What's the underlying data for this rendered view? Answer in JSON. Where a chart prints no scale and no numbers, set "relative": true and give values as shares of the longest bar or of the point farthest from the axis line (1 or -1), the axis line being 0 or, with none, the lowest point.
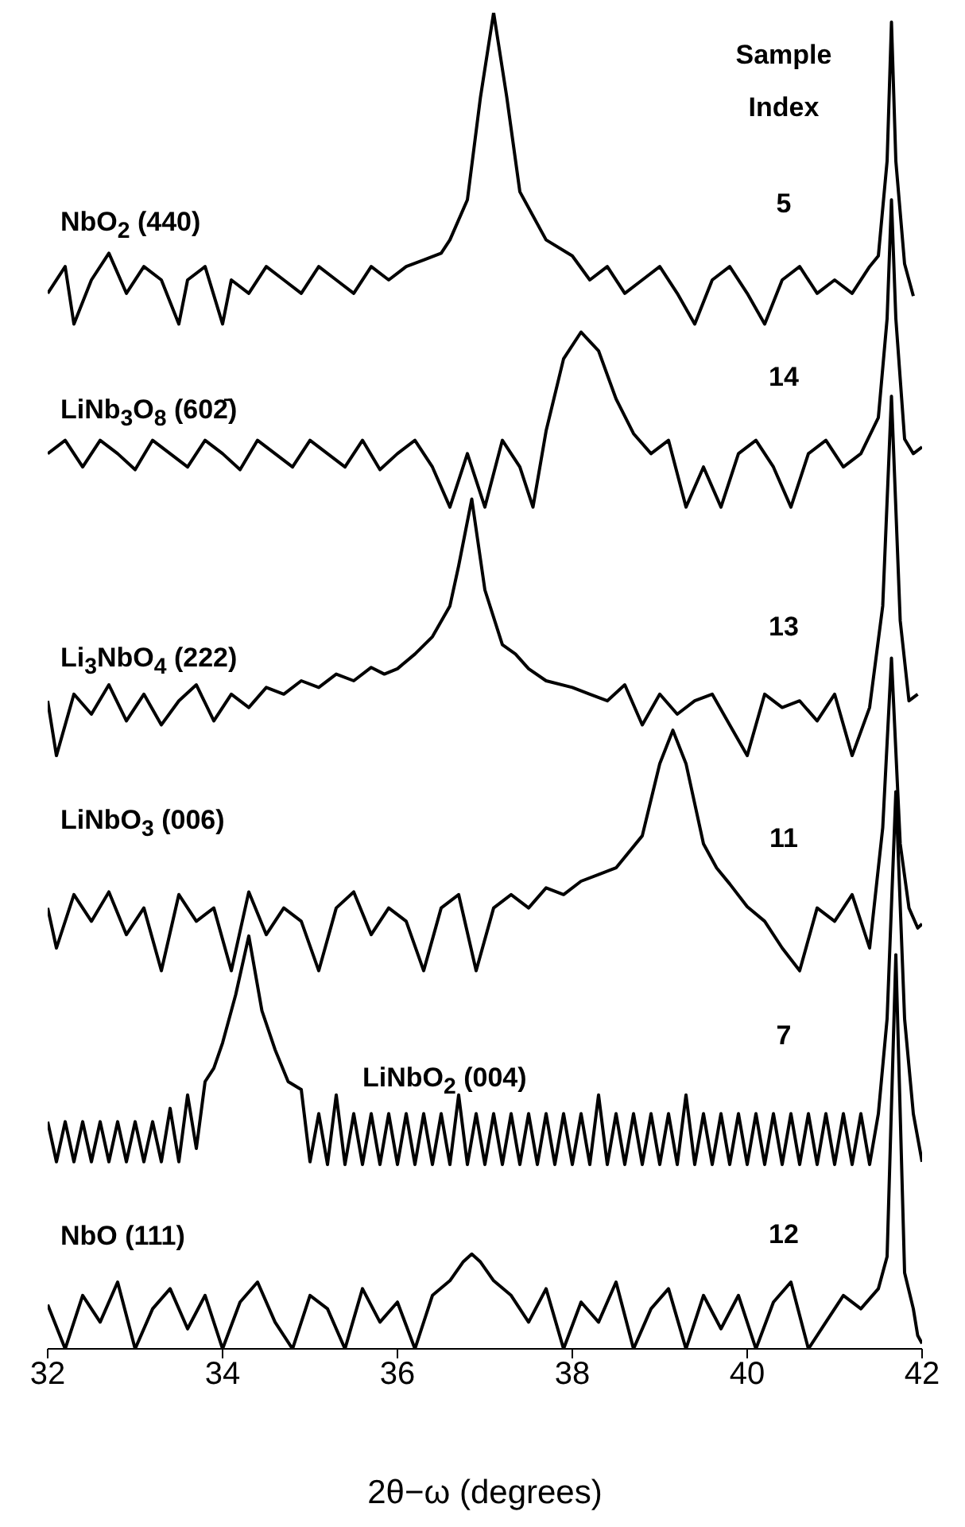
{
  "chart_data": {
    "type": "line",
    "relative": true,
    "xlabel": "2θ−ω (degrees)",
    "xlim": [
      32,
      42
    ],
    "xticks": [
      32,
      34,
      36,
      38,
      40,
      42
    ],
    "marker": "none",
    "line_style": "solid",
    "annotations": [
      "Sample Index",
      "5",
      "14",
      "13",
      "11",
      "7",
      "12"
    ],
    "series": [
      {
        "name": "NbO$_{2}$ (440)",
        "color": "#000000",
        "x": [
          32.0,
          32.2,
          32.3,
          32.5,
          32.7,
          32.9,
          33.1,
          33.3,
          33.5,
          33.6,
          33.8,
          34.0,
          34.1,
          34.3,
          34.5,
          34.7,
          34.9,
          35.1,
          35.3,
          35.5,
          35.7,
          35.9,
          36.1,
          36.3,
          36.5,
          36.6,
          36.8,
          36.95,
          37.1,
          37.25,
          37.4,
          37.7,
          38.0,
          38.2,
          38.4,
          38.6,
          38.8,
          39.0,
          39.2,
          39.4,
          39.6,
          39.8,
          40.0,
          40.2,
          40.4,
          40.6,
          40.8,
          41.0,
          41.2,
          41.4,
          41.5,
          41.6,
          41.65,
          41.7,
          41.8,
          41.9
        ],
        "values": [
          0.79,
          0.81,
          0.767,
          0.8,
          0.82,
          0.79,
          0.81,
          0.8,
          0.767,
          0.8,
          0.81,
          0.767,
          0.8,
          0.79,
          0.81,
          0.8,
          0.79,
          0.81,
          0.8,
          0.79,
          0.81,
          0.8,
          0.81,
          0.815,
          0.82,
          0.83,
          0.86,
          0.937,
          1.0,
          0.937,
          0.866,
          0.83,
          0.818,
          0.8,
          0.81,
          0.79,
          0.8,
          0.81,
          0.79,
          0.767,
          0.8,
          0.81,
          0.79,
          0.767,
          0.8,
          0.81,
          0.79,
          0.8,
          0.79,
          0.81,
          0.818,
          0.889,
          0.993,
          0.889,
          0.812,
          0.788
        ]
      },
      {
        "name": "LiNb$_{3}$O$_{8}$ (602̄)",
        "color": "#000000",
        "x": [
          32.0,
          32.2,
          32.4,
          32.6,
          32.8,
          33.0,
          33.2,
          33.4,
          33.6,
          33.8,
          34.0,
          34.2,
          34.4,
          34.6,
          34.8,
          35.0,
          35.2,
          35.4,
          35.6,
          35.8,
          36.0,
          36.2,
          36.4,
          36.6,
          36.8,
          37.0,
          37.2,
          37.4,
          37.55,
          37.7,
          37.9,
          38.1,
          38.3,
          38.5,
          38.7,
          38.9,
          39.1,
          39.3,
          39.5,
          39.7,
          39.9,
          40.1,
          40.3,
          40.5,
          40.7,
          40.9,
          41.1,
          41.3,
          41.5,
          41.6,
          41.65,
          41.7,
          41.8,
          41.9,
          42.0
        ],
        "values": [
          0.67,
          0.68,
          0.66,
          0.68,
          0.67,
          0.658,
          0.68,
          0.67,
          0.66,
          0.68,
          0.67,
          0.658,
          0.68,
          0.67,
          0.66,
          0.68,
          0.67,
          0.66,
          0.68,
          0.658,
          0.67,
          0.68,
          0.66,
          0.63,
          0.67,
          0.63,
          0.68,
          0.66,
          0.63,
          0.687,
          0.741,
          0.761,
          0.747,
          0.711,
          0.685,
          0.67,
          0.68,
          0.63,
          0.66,
          0.63,
          0.67,
          0.68,
          0.66,
          0.63,
          0.67,
          0.68,
          0.66,
          0.67,
          0.697,
          0.771,
          0.86,
          0.771,
          0.681,
          0.67,
          0.675
        ]
      },
      {
        "name": "Li$_{3}$NbO$_{4}$ (222)",
        "color": "#000000",
        "x": [
          32.0,
          32.1,
          32.3,
          32.5,
          32.7,
          32.9,
          33.1,
          33.3,
          33.5,
          33.7,
          33.9,
          34.1,
          34.3,
          34.5,
          34.7,
          34.9,
          35.1,
          35.3,
          35.5,
          35.7,
          35.85,
          36.0,
          36.2,
          36.4,
          36.6,
          36.7,
          36.85,
          37.0,
          37.2,
          37.35,
          37.5,
          37.7,
          38.0,
          38.2,
          38.4,
          38.6,
          38.8,
          39.0,
          39.2,
          39.4,
          39.6,
          39.8,
          40.0,
          40.2,
          40.4,
          40.6,
          40.8,
          41.0,
          41.2,
          41.4,
          41.55,
          41.65,
          41.75,
          41.85,
          41.95
        ],
        "values": [
          0.485,
          0.444,
          0.49,
          0.475,
          0.497,
          0.47,
          0.49,
          0.467,
          0.485,
          0.497,
          0.47,
          0.49,
          0.48,
          0.495,
          0.49,
          0.5,
          0.495,
          0.505,
          0.5,
          0.51,
          0.505,
          0.509,
          0.52,
          0.533,
          0.556,
          0.586,
          0.636,
          0.568,
          0.527,
          0.52,
          0.509,
          0.5,
          0.495,
          0.49,
          0.485,
          0.497,
          0.467,
          0.49,
          0.475,
          0.485,
          0.49,
          0.467,
          0.444,
          0.49,
          0.48,
          0.485,
          0.47,
          0.49,
          0.444,
          0.48,
          0.556,
          0.713,
          0.545,
          0.485,
          0.49
        ]
      },
      {
        "name": "LiNbO$_{3}$ (006)",
        "color": "#000000",
        "x": [
          32.0,
          32.1,
          32.3,
          32.5,
          32.7,
          32.9,
          33.1,
          33.3,
          33.5,
          33.7,
          33.9,
          34.1,
          34.3,
          34.5,
          34.7,
          34.9,
          35.1,
          35.3,
          35.5,
          35.7,
          35.9,
          36.1,
          36.3,
          36.5,
          36.7,
          36.9,
          37.1,
          37.3,
          37.5,
          37.7,
          37.9,
          38.1,
          38.3,
          38.5,
          38.8,
          39.0,
          39.15,
          39.3,
          39.5,
          39.65,
          39.8,
          40.0,
          40.2,
          40.4,
          40.6,
          40.8,
          41.0,
          41.2,
          41.4,
          41.55,
          41.65,
          41.75,
          41.85,
          41.95,
          42.0
        ],
        "values": [
          0.33,
          0.3,
          0.34,
          0.32,
          0.342,
          0.31,
          0.33,
          0.283,
          0.34,
          0.32,
          0.33,
          0.283,
          0.342,
          0.31,
          0.33,
          0.32,
          0.283,
          0.33,
          0.342,
          0.31,
          0.33,
          0.32,
          0.283,
          0.33,
          0.34,
          0.283,
          0.33,
          0.34,
          0.33,
          0.345,
          0.34,
          0.35,
          0.355,
          0.36,
          0.384,
          0.438,
          0.463,
          0.438,
          0.378,
          0.36,
          0.348,
          0.331,
          0.32,
          0.3,
          0.283,
          0.33,
          0.32,
          0.34,
          0.3,
          0.39,
          0.517,
          0.378,
          0.33,
          0.315,
          0.318
        ]
      },
      {
        "name": "LiNbO$_{2}$ (004)",
        "color": "#000000",
        "x": [
          32.0,
          32.1,
          32.2,
          32.3,
          32.4,
          32.5,
          32.6,
          32.7,
          32.8,
          32.9,
          33.0,
          33.1,
          33.2,
          33.3,
          33.4,
          33.5,
          33.6,
          33.7,
          33.8,
          33.9,
          34.0,
          34.15,
          34.3,
          34.45,
          34.6,
          34.75,
          34.9,
          35.0,
          35.1,
          35.2,
          35.3,
          35.4,
          35.5,
          35.6,
          35.7,
          35.8,
          35.9,
          36.0,
          36.1,
          36.2,
          36.3,
          36.4,
          36.5,
          36.6,
          36.7,
          36.8,
          36.9,
          37.0,
          37.1,
          37.2,
          37.3,
          37.4,
          37.5,
          37.6,
          37.7,
          37.8,
          37.9,
          38.0,
          38.1,
          38.2,
          38.3,
          38.4,
          38.5,
          38.6,
          38.7,
          38.8,
          38.9,
          39.0,
          39.1,
          39.2,
          39.3,
          39.4,
          39.5,
          39.6,
          39.7,
          39.8,
          39.9,
          40.0,
          40.1,
          40.2,
          40.3,
          40.4,
          40.5,
          40.6,
          40.7,
          40.8,
          40.9,
          41.0,
          41.1,
          41.2,
          41.3,
          41.4,
          41.5,
          41.6,
          41.7,
          41.8,
          41.9,
          42.0
        ],
        "values": [
          0.17,
          0.14,
          0.17,
          0.14,
          0.17,
          0.14,
          0.17,
          0.14,
          0.17,
          0.14,
          0.17,
          0.14,
          0.17,
          0.14,
          0.18,
          0.14,
          0.19,
          0.15,
          0.2,
          0.21,
          0.229,
          0.265,
          0.309,
          0.253,
          0.224,
          0.2,
          0.194,
          0.14,
          0.176,
          0.138,
          0.19,
          0.138,
          0.176,
          0.138,
          0.176,
          0.138,
          0.176,
          0.138,
          0.176,
          0.138,
          0.176,
          0.138,
          0.176,
          0.138,
          0.19,
          0.138,
          0.176,
          0.138,
          0.176,
          0.138,
          0.176,
          0.138,
          0.176,
          0.138,
          0.176,
          0.138,
          0.176,
          0.138,
          0.176,
          0.138,
          0.19,
          0.138,
          0.176,
          0.138,
          0.176,
          0.138,
          0.176,
          0.138,
          0.176,
          0.138,
          0.19,
          0.138,
          0.176,
          0.138,
          0.176,
          0.138,
          0.176,
          0.138,
          0.176,
          0.138,
          0.176,
          0.138,
          0.176,
          0.138,
          0.176,
          0.138,
          0.176,
          0.138,
          0.176,
          0.138,
          0.176,
          0.138,
          0.176,
          0.247,
          0.417,
          0.247,
          0.176,
          0.14
        ]
      },
      {
        "name": "NbO (111)",
        "color": "#000000",
        "x": [
          32.0,
          32.2,
          32.4,
          32.6,
          32.8,
          33.0,
          33.2,
          33.4,
          33.6,
          33.8,
          34.0,
          34.2,
          34.4,
          34.6,
          34.8,
          35.0,
          35.2,
          35.4,
          35.6,
          35.8,
          36.0,
          36.2,
          36.4,
          36.6,
          36.75,
          36.85,
          36.95,
          37.1,
          37.3,
          37.5,
          37.7,
          37.9,
          38.1,
          38.3,
          38.5,
          38.7,
          38.9,
          39.1,
          39.3,
          39.5,
          39.7,
          39.9,
          40.1,
          40.3,
          40.5,
          40.7,
          40.9,
          41.1,
          41.3,
          41.5,
          41.6,
          41.7,
          41.8,
          41.9,
          41.95,
          42.0
        ],
        "values": [
          0.033,
          0.0,
          0.04,
          0.02,
          0.05,
          0.0,
          0.03,
          0.045,
          0.015,
          0.04,
          0.0,
          0.035,
          0.05,
          0.02,
          0.0,
          0.04,
          0.03,
          0.0,
          0.045,
          0.02,
          0.035,
          0.0,
          0.04,
          0.051,
          0.065,
          0.071,
          0.065,
          0.051,
          0.04,
          0.02,
          0.045,
          0.0,
          0.035,
          0.02,
          0.05,
          0.0,
          0.03,
          0.045,
          0.0,
          0.04,
          0.015,
          0.04,
          0.0,
          0.035,
          0.05,
          0.0,
          0.02,
          0.04,
          0.03,
          0.045,
          0.069,
          0.295,
          0.057,
          0.03,
          0.01,
          0.004
        ]
      }
    ]
  }
}
